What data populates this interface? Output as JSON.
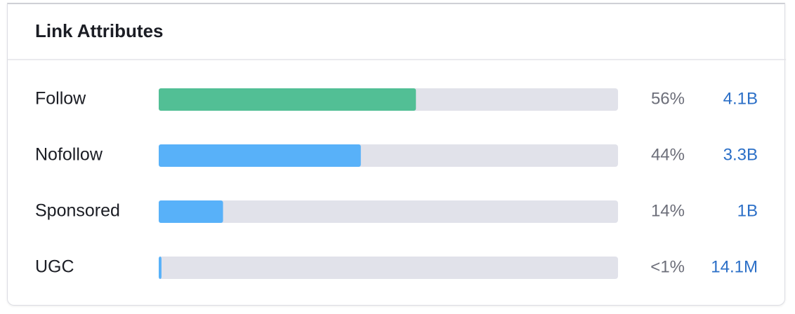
{
  "chart_data": {
    "type": "bar",
    "title": "Link Attributes",
    "categories": [
      "Follow",
      "Nofollow",
      "Sponsored",
      "UGC"
    ],
    "values": [
      56,
      44,
      14,
      0.6
    ],
    "value_labels": [
      "56%",
      "44%",
      "14%",
      "<1%"
    ],
    "counts": [
      4100000000,
      3300000000,
      1000000000,
      14100000
    ],
    "count_labels": [
      "4.1B",
      "3.3B",
      "1B",
      "14.1M"
    ],
    "colors": [
      "#52bf95",
      "#58b1f9",
      "#58b1f9",
      "#58b1f9"
    ],
    "xlim": [
      0,
      100
    ]
  }
}
